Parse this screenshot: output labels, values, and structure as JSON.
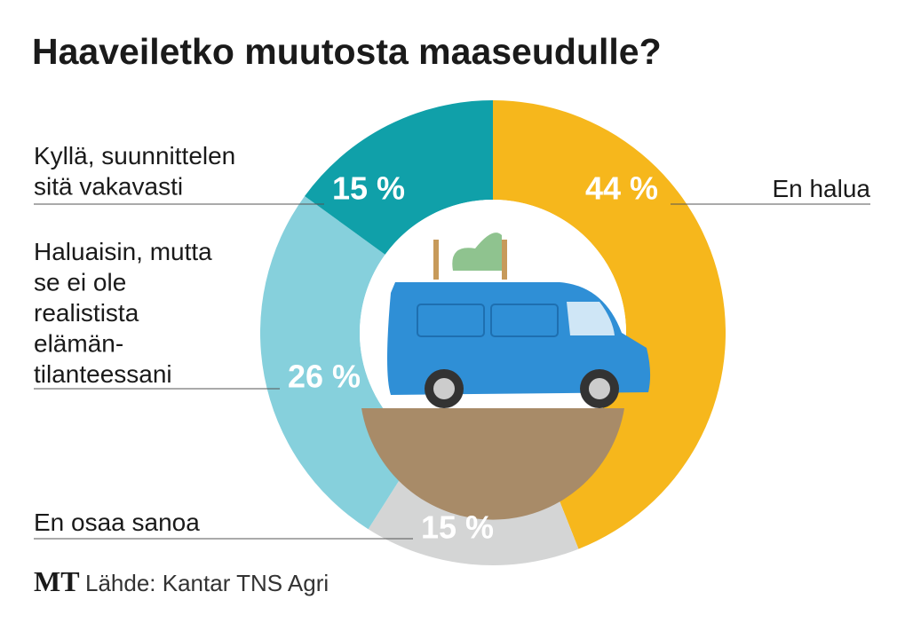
{
  "chart_data": {
    "type": "donut",
    "title": "Haaveiletko muutosta maaseudulle?",
    "categories": [
      [
        "En halua"
      ],
      [
        "En osaa sanoa"
      ],
      [
        "Haluaisin, mutta",
        "se ei ole",
        "realistista",
        "elämän-",
        "tilanteessani"
      ],
      [
        "Kyllä, suunnittelen",
        "sitä vakavasti"
      ]
    ],
    "values": [
      44,
      15,
      26,
      15
    ],
    "value_labels": [
      "44 %",
      "15 %",
      "26 %",
      "15 %"
    ],
    "colors": [
      "#f6b71c",
      "#d4d5d5",
      "#86d0dc",
      "#10a0a9"
    ],
    "logo": "MT",
    "source": "Lähde: Kantar TNS Agri"
  }
}
